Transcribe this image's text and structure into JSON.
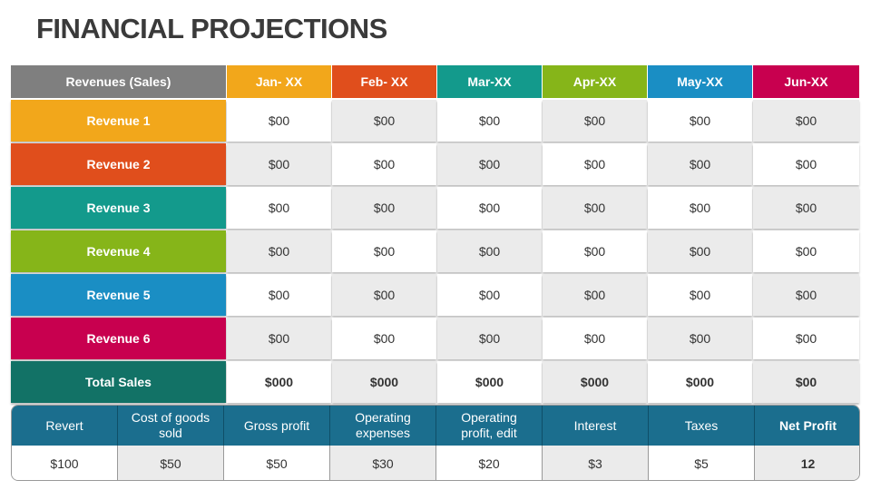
{
  "title": "FINANCIAL PROJECTIONS",
  "table": {
    "header": [
      "Revenues (Sales)",
      "Jan- XX",
      "Feb- XX",
      "Mar-XX",
      "Apr-XX",
      "May-XX",
      "Jun-XX"
    ],
    "rows": [
      [
        "Revenue 1",
        "$00",
        "$00",
        "$00",
        "$00",
        "$00",
        "$00"
      ],
      [
        "Revenue 2",
        "$00",
        "$00",
        "$00",
        "$00",
        "$00",
        "$00"
      ],
      [
        "Revenue 3",
        "$00",
        "$00",
        "$00",
        "$00",
        "$00",
        "$00"
      ],
      [
        "Revenue 4",
        "$00",
        "$00",
        "$00",
        "$00",
        "$00",
        "$00"
      ],
      [
        "Revenue 5",
        "$00",
        "$00",
        "$00",
        "$00",
        "$00",
        "$00"
      ],
      [
        "Revenue 6",
        "$00",
        "$00",
        "$00",
        "$00",
        "$00",
        "$00"
      ],
      [
        "Total Sales",
        "$000",
        "$000",
        "$000",
        "$000",
        "$000",
        "$00"
      ]
    ]
  },
  "summary": {
    "header": [
      "Revert",
      "Cost of goods sold",
      "Gross profit",
      "Operating expenses",
      "Operating profit, edit",
      "Interest",
      "Taxes",
      "Net Profit"
    ],
    "values": [
      "$100",
      "$50",
      "$50",
      "$30",
      "$20",
      "$3",
      "$5",
      "12"
    ]
  }
}
